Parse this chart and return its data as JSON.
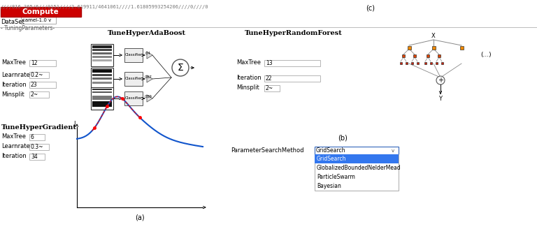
{
  "title_text": "////816.365/6///0151////2.619911/4641061////1.61805993254206////0////0",
  "label_c": "(c)",
  "compute_btn_text": "Compute",
  "compute_btn_color": "#cc0000",
  "dataset_label": "DataSet",
  "dataset_value": "camel-1.0",
  "tuning_label": "- TuningParameters-",
  "adaboost_title": "TuneHyperAdaBoost",
  "rf_title": "TuneHyperRandomForest",
  "gradient_title": "TuneHyperGradient",
  "ada_params": [
    [
      "MaxTree",
      "12"
    ],
    [
      "Learnrate",
      "0.2~"
    ],
    [
      "Iteration",
      "23"
    ],
    [
      "Minsplit",
      "2~"
    ]
  ],
  "rf_params": [
    [
      "MaxTree",
      "13"
    ],
    [
      "Iteration",
      "22"
    ],
    [
      "Minsplit",
      "2~"
    ]
  ],
  "grad_params": [
    [
      "MaxTree",
      "6"
    ],
    [
      "Learnrate",
      "0.3~"
    ],
    [
      "Iteration",
      "34"
    ]
  ],
  "label_a": "(a)",
  "label_b": "(b)",
  "param_search_label": "ParameterSearchMethod",
  "param_search_value": "GridSearch",
  "dropdown_items": [
    "GridSearch",
    "GlobalizedBoundedNelderMead",
    "ParticleSwarm",
    "Bayesian"
  ],
  "dropdown_selected_index": 0,
  "bg_color": "#ffffff",
  "text_color": "#000000",
  "gray_text": "#555555",
  "input_border": "#aaaaaa",
  "dropdown_selected_bg": "#3377ee",
  "dropdown_selected_text": "#ffffff",
  "ada_stripe_dark": "#222222",
  "ada_stripe_mid": "#555555",
  "ada_stripe_light": "#999999",
  "classifier_bg": "#f0f0f0",
  "sigma_border": "#555555"
}
